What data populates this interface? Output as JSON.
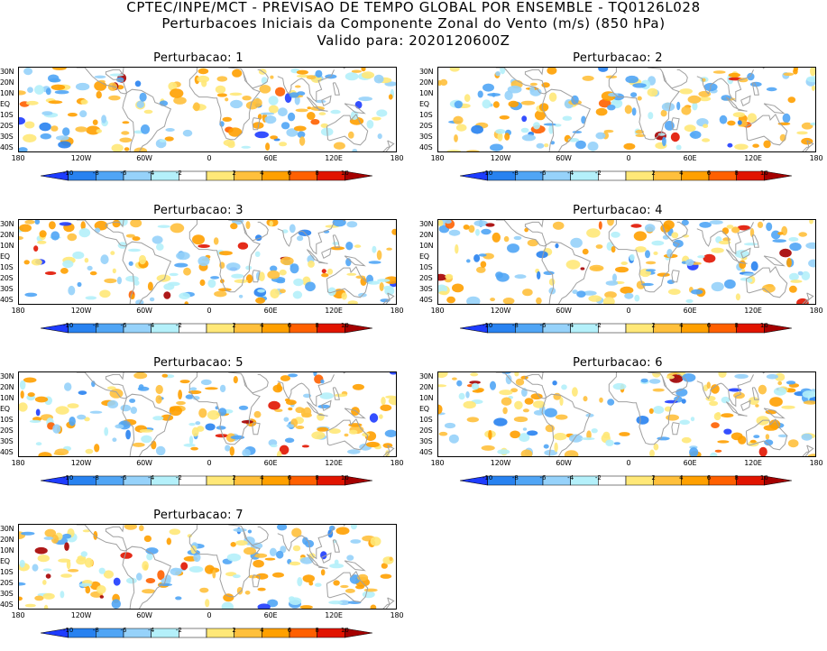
{
  "header": {
    "line1": "CPTEC/INPE/MCT - PREVISAO DE TEMPO GLOBAL POR ENSEMBLE - TQ0126L028",
    "line2": "Perturbacoes Iniciais da Componente Zonal do Vento (m/s) (850 hPa)",
    "line3": "Valido para: 2020120600Z"
  },
  "panels": [
    {
      "title": "Perturbacao: 1"
    },
    {
      "title": "Perturbacao: 2"
    },
    {
      "title": "Perturbacao: 3"
    },
    {
      "title": "Perturbacao: 4"
    },
    {
      "title": "Perturbacao: 5"
    },
    {
      "title": "Perturbacao: 6"
    },
    {
      "title": "Perturbacao: 7"
    }
  ],
  "lat_labels": [
    "30N",
    "20N",
    "10N",
    "EQ",
    "10S",
    "20S",
    "30S",
    "40S"
  ],
  "lon_labels": [
    "180",
    "120W",
    "60W",
    "0",
    "60E",
    "120E",
    "180"
  ],
  "colorbar": {
    "ticks": [
      "-10",
      "-8",
      "-6",
      "-4",
      "-2",
      "2",
      "4",
      "6",
      "8",
      "10"
    ],
    "colors": [
      "#1e3cff",
      "#2882f0",
      "#50a5f5",
      "#96d2fa",
      "#b4f0fa",
      "#ffffff",
      "#ffe878",
      "#ffc03c",
      "#ffa000",
      "#ff6000",
      "#e11400",
      "#a50000"
    ]
  },
  "legend_colors": {
    "coastline": "#a0a0a0",
    "frame": "#000000"
  }
}
